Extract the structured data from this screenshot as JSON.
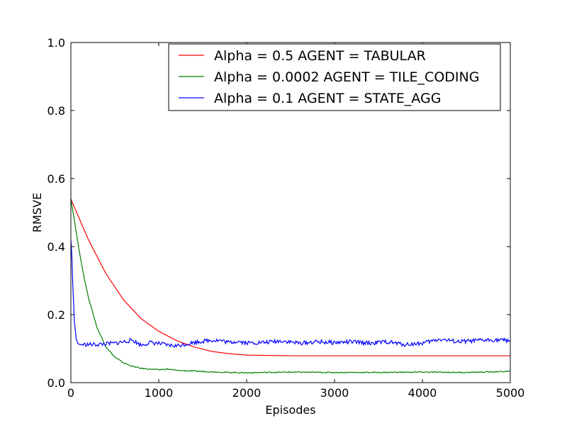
{
  "chart_data": {
    "type": "line",
    "title": "",
    "xlabel": "Episodes",
    "ylabel": "RMSVE",
    "xlim": [
      0,
      5000
    ],
    "ylim": [
      0.0,
      1.0
    ],
    "x_ticks": [
      0,
      1000,
      2000,
      3000,
      4000,
      5000
    ],
    "x_tick_labels": [
      "0",
      "1000",
      "2000",
      "3000",
      "4000",
      "5000"
    ],
    "y_ticks": [
      0.0,
      0.2,
      0.4,
      0.6,
      0.8,
      1.0
    ],
    "y_tick_labels": [
      "0.0",
      "0.2",
      "0.4",
      "0.6",
      "0.8",
      "1.0"
    ],
    "grid": false,
    "legend_position": "top-right",
    "series": [
      {
        "name": "Alpha = 0.5 AGENT = TABULAR",
        "color": "#ff0000",
        "x": [
          0,
          200,
          400,
          600,
          800,
          1000,
          1200,
          1400,
          1600,
          1800,
          2000,
          2500,
          3000,
          3500,
          4000,
          4500,
          5000
        ],
        "y": [
          0.54,
          0.42,
          0.32,
          0.243,
          0.188,
          0.151,
          0.124,
          0.105,
          0.092,
          0.085,
          0.081,
          0.079,
          0.079,
          0.079,
          0.079,
          0.079,
          0.079
        ]
      },
      {
        "name": "Alpha = 0.0002 AGENT = TILE_CODING",
        "color": "#008000",
        "x": [
          0,
          50,
          100,
          150,
          200,
          300,
          400,
          500,
          600,
          700,
          800,
          1000,
          1100,
          1200,
          1400,
          1600,
          1800,
          2000,
          2200,
          2500,
          3000,
          3500,
          4000,
          4500,
          5000
        ],
        "y": [
          0.54,
          0.46,
          0.38,
          0.31,
          0.25,
          0.16,
          0.105,
          0.075,
          0.058,
          0.048,
          0.042,
          0.038,
          0.04,
          0.036,
          0.034,
          0.032,
          0.03,
          0.029,
          0.03,
          0.031,
          0.03,
          0.03,
          0.031,
          0.03,
          0.033
        ]
      },
      {
        "name": "Alpha = 0.1 AGENT = STATE_AGG",
        "color": "#0000ff",
        "x": [
          0,
          10,
          20,
          40,
          60,
          80,
          100,
          200,
          300,
          400,
          500,
          600,
          700,
          800,
          900,
          1000,
          1100,
          1200,
          1300,
          1400,
          1500,
          1600,
          1700,
          1800,
          1900,
          2000,
          2200,
          2400,
          2600,
          2800,
          3000,
          3200,
          3400,
          3600,
          3800,
          4000,
          4200,
          4400,
          4600,
          4800,
          5000
        ],
        "y": [
          0.42,
          0.38,
          0.3,
          0.18,
          0.13,
          0.115,
          0.112,
          0.112,
          0.112,
          0.114,
          0.116,
          0.12,
          0.125,
          0.11,
          0.118,
          0.115,
          0.11,
          0.108,
          0.113,
          0.118,
          0.122,
          0.125,
          0.124,
          0.118,
          0.122,
          0.117,
          0.118,
          0.123,
          0.116,
          0.12,
          0.118,
          0.12,
          0.116,
          0.12,
          0.112,
          0.116,
          0.128,
          0.12,
          0.123,
          0.126,
          0.124
        ]
      }
    ]
  }
}
